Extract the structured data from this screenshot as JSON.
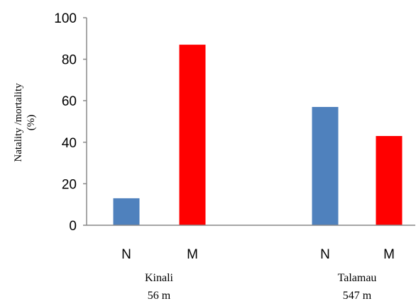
{
  "chart_data": {
    "type": "bar",
    "ylabel_lines": [
      "Natality /mortality",
      "(%)"
    ],
    "ylim": [
      0,
      100
    ],
    "yticks": [
      0,
      20,
      40,
      60,
      80,
      100
    ],
    "grid": false,
    "groups": [
      {
        "name_lines": [
          "Kinali",
          "56 m"
        ],
        "bars": [
          {
            "label": "N",
            "value": 13,
            "color": "#4f81bd"
          },
          {
            "label": "M",
            "value": 87,
            "color": "#ff0000"
          }
        ]
      },
      {
        "name_lines": [
          "Talamau",
          "547 m"
        ],
        "bars": [
          {
            "label": "N",
            "value": 57,
            "color": "#4f81bd"
          },
          {
            "label": "M",
            "value": 43,
            "color": "#ff0000"
          }
        ]
      }
    ]
  }
}
